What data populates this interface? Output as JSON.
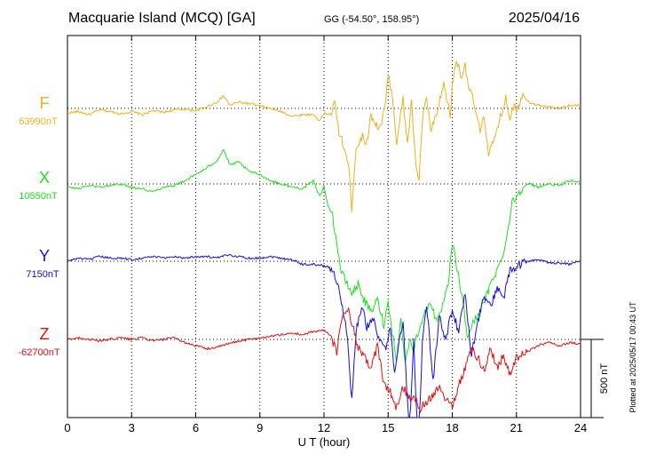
{
  "chart_data": {
    "type": "line",
    "title": "Macquarie Island (MCQ)  [GA]",
    "coords": "GG (-54.50°, 158.95°)",
    "date": "2025/04/16",
    "xlabel": "U T (hour)",
    "xlim": [
      0,
      24
    ],
    "xticks": [
      "0",
      "3",
      "6",
      "9",
      "12",
      "15",
      "18",
      "21",
      "24"
    ],
    "grid": true,
    "scale_bar": {
      "label": "500 nT",
      "value_nT": 500
    },
    "footnote": "Plotted at 2025/05/17 00:43 UT",
    "series": [
      {
        "name": "F",
        "baseline": "63990nT",
        "color": "#f0b020",
        "points": [
          [
            0,
            -30
          ],
          [
            0.5,
            -20
          ],
          [
            1,
            -40
          ],
          [
            1.5,
            -10
          ],
          [
            2,
            -20
          ],
          [
            2.5,
            -35
          ],
          [
            3,
            -20
          ],
          [
            3.5,
            -40
          ],
          [
            4,
            -15
          ],
          [
            4.5,
            -25
          ],
          [
            5,
            -10
          ],
          [
            5.5,
            -5
          ],
          [
            6,
            -15
          ],
          [
            6.5,
            10
          ],
          [
            7,
            40
          ],
          [
            7.3,
            80
          ],
          [
            7.6,
            20
          ],
          [
            8,
            40
          ],
          [
            8.5,
            30
          ],
          [
            9,
            15
          ],
          [
            9.5,
            0
          ],
          [
            10,
            -20
          ],
          [
            10.5,
            -50
          ],
          [
            11,
            -40
          ],
          [
            11.5,
            -40
          ],
          [
            11.8,
            -80
          ],
          [
            12,
            -30
          ],
          [
            12.3,
            -40
          ],
          [
            12.5,
            30
          ],
          [
            12.7,
            -150
          ],
          [
            13,
            -280
          ],
          [
            13.2,
            -420
          ],
          [
            13.3,
            -640
          ],
          [
            13.5,
            -250
          ],
          [
            13.8,
            -180
          ],
          [
            14,
            -220
          ],
          [
            14.2,
            -40
          ],
          [
            14.5,
            -120
          ],
          [
            14.7,
            -100
          ],
          [
            14.9,
            50
          ],
          [
            15,
            220
          ],
          [
            15.2,
            80
          ],
          [
            15.4,
            -220
          ],
          [
            15.7,
            60
          ],
          [
            15.9,
            -230
          ],
          [
            16.1,
            40
          ],
          [
            16.3,
            -380
          ],
          [
            16.45,
            -450
          ],
          [
            16.6,
            -80
          ],
          [
            16.8,
            70
          ],
          [
            17,
            -150
          ],
          [
            17.3,
            -30
          ],
          [
            17.6,
            160
          ],
          [
            17.9,
            -50
          ],
          [
            18,
            150
          ],
          [
            18.2,
            320
          ],
          [
            18.4,
            200
          ],
          [
            18.6,
            280
          ],
          [
            18.8,
            120
          ],
          [
            19,
            40
          ],
          [
            19.3,
            -150
          ],
          [
            19.5,
            -60
          ],
          [
            19.7,
            -280
          ],
          [
            20,
            -200
          ],
          [
            20.2,
            -80
          ],
          [
            20.5,
            60
          ],
          [
            20.7,
            -60
          ],
          [
            20.9,
            40
          ],
          [
            21,
            -5
          ],
          [
            21.3,
            90
          ],
          [
            21.6,
            40
          ],
          [
            22,
            20
          ],
          [
            22.5,
            10
          ],
          [
            23,
            0
          ],
          [
            23.5,
            20
          ],
          [
            24,
            20
          ]
        ]
      },
      {
        "name": "X",
        "baseline": "10550nT",
        "color": "#20e020",
        "points": [
          [
            0,
            -20
          ],
          [
            0.5,
            -30
          ],
          [
            1,
            -10
          ],
          [
            1.5,
            -20
          ],
          [
            2,
            -10
          ],
          [
            2.5,
            0
          ],
          [
            3,
            -20
          ],
          [
            3.5,
            -30
          ],
          [
            4,
            -50
          ],
          [
            4.5,
            -20
          ],
          [
            5,
            -10
          ],
          [
            5.5,
            20
          ],
          [
            6,
            60
          ],
          [
            6.5,
            100
          ],
          [
            7,
            150
          ],
          [
            7.3,
            220
          ],
          [
            7.6,
            120
          ],
          [
            8,
            140
          ],
          [
            8.5,
            80
          ],
          [
            9,
            60
          ],
          [
            9.5,
            20
          ],
          [
            10,
            0
          ],
          [
            10.5,
            -20
          ],
          [
            11,
            -30
          ],
          [
            11.5,
            20
          ],
          [
            11.8,
            -80
          ],
          [
            12,
            -20
          ],
          [
            12.2,
            -140
          ],
          [
            12.4,
            -200
          ],
          [
            12.6,
            -380
          ],
          [
            12.8,
            -560
          ],
          [
            13,
            -620
          ],
          [
            13.3,
            -700
          ],
          [
            13.6,
            -640
          ],
          [
            13.9,
            -750
          ],
          [
            14.2,
            -820
          ],
          [
            14.5,
            -740
          ],
          [
            14.8,
            -900
          ],
          [
            15,
            -760
          ],
          [
            15.2,
            -950
          ],
          [
            15.4,
            -1120
          ],
          [
            15.6,
            -860
          ],
          [
            15.8,
            -1150
          ],
          [
            16,
            -1000
          ],
          [
            16.2,
            -1050
          ],
          [
            16.5,
            -900
          ],
          [
            16.8,
            -800
          ],
          [
            17,
            -750
          ],
          [
            17.3,
            -900
          ],
          [
            17.5,
            -800
          ],
          [
            17.8,
            -660
          ],
          [
            18,
            -380
          ],
          [
            18.2,
            -520
          ],
          [
            18.5,
            -760
          ],
          [
            18.7,
            -980
          ],
          [
            19,
            -880
          ],
          [
            19.3,
            -820
          ],
          [
            19.6,
            -720
          ],
          [
            19.9,
            -600
          ],
          [
            20.2,
            -520
          ],
          [
            20.5,
            -380
          ],
          [
            20.8,
            -120
          ],
          [
            21,
            -80
          ],
          [
            21.3,
            -20
          ],
          [
            21.6,
            0
          ],
          [
            22,
            -20
          ],
          [
            22.5,
            0
          ],
          [
            23,
            -10
          ],
          [
            23.5,
            20
          ],
          [
            24,
            10
          ]
        ]
      },
      {
        "name": "Y",
        "baseline": "7150nT",
        "color": "#1010e0",
        "points": [
          [
            0,
            0
          ],
          [
            0.5,
            20
          ],
          [
            1,
            10
          ],
          [
            1.5,
            30
          ],
          [
            2,
            20
          ],
          [
            2.5,
            20
          ],
          [
            3,
            10
          ],
          [
            3.5,
            20
          ],
          [
            4,
            30
          ],
          [
            4.5,
            20
          ],
          [
            5,
            30
          ],
          [
            5.5,
            20
          ],
          [
            6,
            30
          ],
          [
            6.5,
            30
          ],
          [
            7,
            20
          ],
          [
            7.5,
            40
          ],
          [
            8,
            30
          ],
          [
            8.5,
            20
          ],
          [
            9,
            20
          ],
          [
            9.5,
            30
          ],
          [
            10,
            20
          ],
          [
            10.5,
            10
          ],
          [
            11,
            -20
          ],
          [
            11.5,
            -20
          ],
          [
            12,
            -30
          ],
          [
            12.3,
            -40
          ],
          [
            12.6,
            -120
          ],
          [
            12.9,
            -330
          ],
          [
            13.1,
            -480
          ],
          [
            13.3,
            -900
          ],
          [
            13.5,
            -440
          ],
          [
            13.8,
            -300
          ],
          [
            14,
            -420
          ],
          [
            14.3,
            -360
          ],
          [
            14.6,
            -520
          ],
          [
            14.9,
            -560
          ],
          [
            15.1,
            -420
          ],
          [
            15.3,
            -700
          ],
          [
            15.5,
            -520
          ],
          [
            15.7,
            -400
          ],
          [
            16,
            -1120
          ],
          [
            16.2,
            -500
          ],
          [
            16.4,
            -1320
          ],
          [
            16.6,
            -500
          ],
          [
            16.8,
            -280
          ],
          [
            17.1,
            -760
          ],
          [
            17.4,
            -360
          ],
          [
            17.7,
            -500
          ],
          [
            18,
            -300
          ],
          [
            18.3,
            -460
          ],
          [
            18.6,
            -200
          ],
          [
            18.9,
            -600
          ],
          [
            19.2,
            -380
          ],
          [
            19.5,
            -220
          ],
          [
            19.8,
            -300
          ],
          [
            20.1,
            -160
          ],
          [
            20.4,
            -240
          ],
          [
            20.7,
            -60
          ],
          [
            21,
            -40
          ],
          [
            21.5,
            0
          ],
          [
            22,
            10
          ],
          [
            22.5,
            -10
          ],
          [
            23,
            -10
          ],
          [
            23.5,
            -20
          ],
          [
            24,
            0
          ]
        ]
      },
      {
        "name": "Z",
        "baseline": "-62700nT",
        "color": "#e01010",
        "points": [
          [
            0,
            0
          ],
          [
            0.5,
            10
          ],
          [
            1,
            0
          ],
          [
            1.5,
            -10
          ],
          [
            2,
            0
          ],
          [
            2.5,
            10
          ],
          [
            3,
            0
          ],
          [
            3.5,
            10
          ],
          [
            4,
            -10
          ],
          [
            4.5,
            0
          ],
          [
            5,
            10
          ],
          [
            5.5,
            -20
          ],
          [
            6,
            -40
          ],
          [
            6.5,
            -60
          ],
          [
            7,
            -50
          ],
          [
            7.5,
            -30
          ],
          [
            8,
            -10
          ],
          [
            8.5,
            0
          ],
          [
            9,
            10
          ],
          [
            9.5,
            20
          ],
          [
            10,
            30
          ],
          [
            10.5,
            40
          ],
          [
            11,
            30
          ],
          [
            11.5,
            50
          ],
          [
            12,
            60
          ],
          [
            12.3,
            20
          ],
          [
            12.6,
            -80
          ],
          [
            12.9,
            180
          ],
          [
            13.1,
            200
          ],
          [
            13.3,
            100
          ],
          [
            13.6,
            -60
          ],
          [
            13.9,
            -120
          ],
          [
            14.2,
            -180
          ],
          [
            14.5,
            -40
          ],
          [
            14.8,
            -280
          ],
          [
            15.1,
            -340
          ],
          [
            15.4,
            -440
          ],
          [
            15.7,
            -300
          ],
          [
            16,
            -380
          ],
          [
            16.2,
            -360
          ],
          [
            16.5,
            -440
          ],
          [
            16.8,
            -400
          ],
          [
            17.1,
            -350
          ],
          [
            17.4,
            -300
          ],
          [
            17.7,
            -380
          ],
          [
            18,
            -420
          ],
          [
            18.3,
            -300
          ],
          [
            18.6,
            -180
          ],
          [
            18.9,
            -60
          ],
          [
            19.2,
            -120
          ],
          [
            19.5,
            -200
          ],
          [
            19.8,
            -60
          ],
          [
            20.1,
            -180
          ],
          [
            20.4,
            -100
          ],
          [
            20.7,
            -230
          ],
          [
            21,
            -120
          ],
          [
            21.5,
            -80
          ],
          [
            22,
            -40
          ],
          [
            22.5,
            -20
          ],
          [
            23,
            -40
          ],
          [
            23.5,
            -20
          ],
          [
            24,
            -30
          ]
        ]
      }
    ]
  }
}
